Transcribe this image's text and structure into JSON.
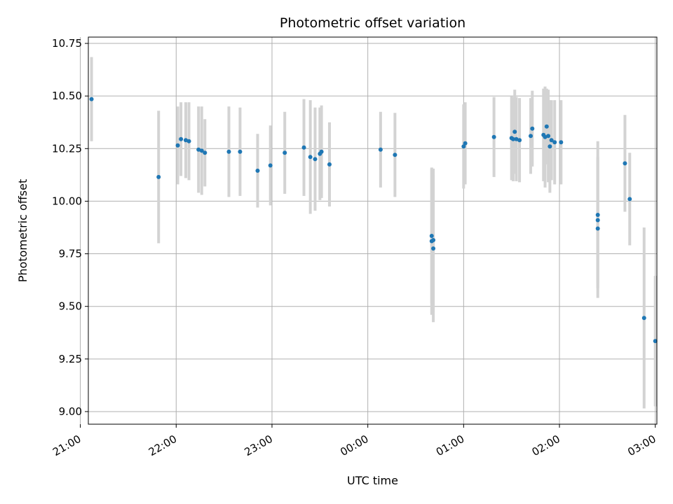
{
  "chart_data": {
    "type": "scatter",
    "title": "Photometric offset variation",
    "xlabel": "UTC time",
    "ylabel": "Photometric offset",
    "x_unit": "UTC",
    "xlim": [
      "21:05",
      "03:01"
    ],
    "ylim": [
      8.94,
      10.78
    ],
    "grid": true,
    "x_ticks": [
      "21:00",
      "22:00",
      "23:00",
      "00:00",
      "01:00",
      "02:00",
      "03:00"
    ],
    "y_ticks": [
      9.0,
      9.25,
      9.5,
      9.75,
      10.0,
      10.25,
      10.5,
      10.75
    ],
    "y_tick_labels": [
      "9.00",
      "9.25",
      "9.50",
      "9.75",
      "10.00",
      "10.25",
      "10.50",
      "10.75"
    ],
    "colors": {
      "points": "#1f77b4",
      "errorbars": "#d3d3d3",
      "grid": "#b0b0b0"
    },
    "series": [
      {
        "x": [
          "21:07",
          "21:49",
          "22:01",
          "22:03",
          "22:06",
          "22:08",
          "22:14",
          "22:16",
          "22:18",
          "22:33",
          "22:40",
          "22:51",
          "22:59",
          "23:08",
          "23:20",
          "23:24",
          "23:27",
          "23:30",
          "23:31",
          "23:36",
          "00:08",
          "00:17",
          "00:40",
          "00:40",
          "00:41",
          "00:41",
          "01:00",
          "01:01",
          "01:19",
          "01:30",
          "01:31",
          "01:32",
          "01:33",
          "01:35",
          "01:42",
          "01:43",
          "01:50",
          "01:51",
          "01:52",
          "01:53",
          "01:54",
          "01:55",
          "01:57",
          "02:01",
          "02:24",
          "02:24",
          "02:24",
          "02:41",
          "02:44",
          "02:53",
          "03:00"
        ],
        "y": [
          10.485,
          10.115,
          10.265,
          10.295,
          10.29,
          10.285,
          10.245,
          10.24,
          10.23,
          10.235,
          10.235,
          10.145,
          10.17,
          10.23,
          10.255,
          10.21,
          10.2,
          10.225,
          10.235,
          10.175,
          10.245,
          10.22,
          9.835,
          9.81,
          9.815,
          9.775,
          10.26,
          10.275,
          10.305,
          10.3,
          10.295,
          10.33,
          10.295,
          10.29,
          10.31,
          10.345,
          10.315,
          10.305,
          10.355,
          10.31,
          10.26,
          10.29,
          10.28,
          10.28,
          9.935,
          9.91,
          9.87,
          10.18,
          10.01,
          9.445,
          9.335
        ],
        "err": [
          0.2,
          0.315,
          0.185,
          0.175,
          0.18,
          0.185,
          0.205,
          0.21,
          0.16,
          0.215,
          0.21,
          0.175,
          0.19,
          0.195,
          0.23,
          0.27,
          0.245,
          0.22,
          0.22,
          0.2,
          0.18,
          0.2,
          0.32,
          0.35,
          0.34,
          0.35,
          0.2,
          0.195,
          0.19,
          0.2,
          0.2,
          0.2,
          0.2,
          0.2,
          0.18,
          0.18,
          0.22,
          0.24,
          0.18,
          0.22,
          0.22,
          0.19,
          0.2,
          0.2,
          0.35,
          0.3,
          0.33,
          0.23,
          0.22,
          0.43,
          0.31
        ]
      }
    ]
  }
}
